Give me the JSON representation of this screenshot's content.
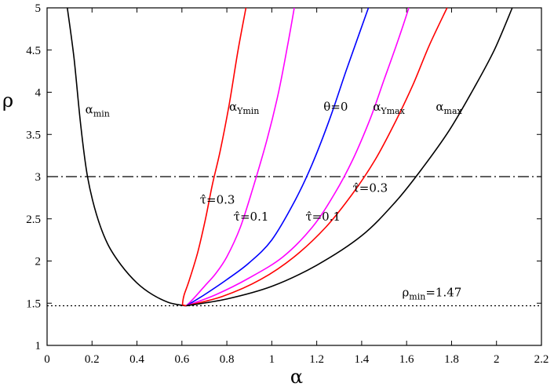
{
  "chart_data": {
    "type": "line",
    "xlabel": "α",
    "ylabel": "ρ",
    "xlim": [
      0,
      2.2
    ],
    "ylim": [
      1,
      5
    ],
    "xticks": [
      "0",
      "0.2",
      "0.4",
      "0.6",
      "0.8",
      "1",
      "1.2",
      "1.4",
      "1.6",
      "1.8",
      "2",
      "2.2"
    ],
    "yticks": [
      "1",
      "1.5",
      "2",
      "2.5",
      "3",
      "3.5",
      "4",
      "4.5",
      "5"
    ],
    "grid": false,
    "series": [
      {
        "key": "alpha_min",
        "color": "#000000",
        "points": [
          [
            0.09,
            5.0
          ],
          [
            0.12,
            4.4
          ],
          [
            0.15,
            3.6
          ],
          [
            0.18,
            3.0
          ],
          [
            0.22,
            2.55
          ],
          [
            0.27,
            2.2
          ],
          [
            0.33,
            1.95
          ],
          [
            0.4,
            1.74
          ],
          [
            0.47,
            1.6
          ],
          [
            0.54,
            1.51
          ],
          [
            0.6,
            1.475
          ],
          [
            0.62,
            1.47
          ]
        ]
      },
      {
        "key": "tau03_left",
        "color": "#ff0000",
        "points": [
          [
            0.62,
            1.47
          ],
          [
            0.605,
            1.48
          ],
          [
            0.603,
            1.5
          ],
          [
            0.61,
            1.6
          ],
          [
            0.63,
            1.75
          ],
          [
            0.67,
            2.1
          ],
          [
            0.705,
            2.5
          ],
          [
            0.735,
            2.9
          ],
          [
            0.77,
            3.3
          ],
          [
            0.81,
            3.85
          ],
          [
            0.85,
            4.5
          ],
          [
            0.885,
            5.0
          ]
        ]
      },
      {
        "key": "tau01_left",
        "color": "#ff00ff",
        "points": [
          [
            0.62,
            1.47
          ],
          [
            0.65,
            1.55
          ],
          [
            0.7,
            1.7
          ],
          [
            0.75,
            1.85
          ],
          [
            0.8,
            2.05
          ],
          [
            0.86,
            2.4
          ],
          [
            0.92,
            2.9
          ],
          [
            0.98,
            3.45
          ],
          [
            1.03,
            4.0
          ],
          [
            1.07,
            4.55
          ],
          [
            1.1,
            5.0
          ]
        ]
      },
      {
        "key": "theta0",
        "color": "#0000ff",
        "points": [
          [
            0.62,
            1.47
          ],
          [
            0.7,
            1.6
          ],
          [
            0.8,
            1.78
          ],
          [
            0.9,
            1.98
          ],
          [
            1.0,
            2.25
          ],
          [
            1.1,
            2.7
          ],
          [
            1.18,
            3.15
          ],
          [
            1.26,
            3.7
          ],
          [
            1.33,
            4.25
          ],
          [
            1.39,
            4.7
          ],
          [
            1.43,
            5.0
          ]
        ]
      },
      {
        "key": "tau01_right",
        "color": "#ff00ff",
        "points": [
          [
            0.62,
            1.47
          ],
          [
            0.75,
            1.6
          ],
          [
            0.9,
            1.8
          ],
          [
            1.05,
            2.05
          ],
          [
            1.18,
            2.4
          ],
          [
            1.28,
            2.8
          ],
          [
            1.36,
            3.2
          ],
          [
            1.44,
            3.7
          ],
          [
            1.5,
            4.15
          ],
          [
            1.56,
            4.6
          ],
          [
            1.61,
            5.0
          ]
        ]
      },
      {
        "key": "tau03_right",
        "color": "#ff0000",
        "points": [
          [
            0.62,
            1.47
          ],
          [
            0.78,
            1.58
          ],
          [
            0.95,
            1.78
          ],
          [
            1.1,
            2.05
          ],
          [
            1.24,
            2.4
          ],
          [
            1.36,
            2.8
          ],
          [
            1.46,
            3.2
          ],
          [
            1.55,
            3.65
          ],
          [
            1.63,
            4.1
          ],
          [
            1.7,
            4.55
          ],
          [
            1.78,
            5.0
          ]
        ]
      },
      {
        "key": "alpha_max",
        "color": "#000000",
        "points": [
          [
            0.62,
            1.47
          ],
          [
            0.8,
            1.55
          ],
          [
            1.0,
            1.7
          ],
          [
            1.2,
            1.95
          ],
          [
            1.4,
            2.3
          ],
          [
            1.55,
            2.7
          ],
          [
            1.67,
            3.1
          ],
          [
            1.79,
            3.55
          ],
          [
            1.9,
            4.05
          ],
          [
            1.99,
            4.5
          ],
          [
            2.07,
            5.0
          ]
        ]
      }
    ],
    "reference_lines": [
      {
        "y": 3.0,
        "style": "dashdot"
      },
      {
        "y": 1.47,
        "style": "dotted"
      }
    ],
    "annotations": [
      {
        "main": "α",
        "sub": "min",
        "x": 0.17,
        "y": 3.75
      },
      {
        "main": "α",
        "sub": "Ymin",
        "x": 0.81,
        "y": 3.78
      },
      {
        "main": "θ=0",
        "sub": "",
        "x": 1.23,
        "y": 3.78
      },
      {
        "main": "α",
        "sub": "Ymax",
        "x": 1.45,
        "y": 3.78
      },
      {
        "main": "α",
        "sub": "max",
        "x": 1.73,
        "y": 3.78
      },
      {
        "main": "τ̂=0.3",
        "sub": "",
        "x": 0.68,
        "y": 2.68
      },
      {
        "main": "τ̂=0.1",
        "sub": "",
        "x": 0.83,
        "y": 2.48
      },
      {
        "main": "τ̂=0.1",
        "sub": "",
        "x": 1.15,
        "y": 2.48
      },
      {
        "main": "τ̂=0.3",
        "sub": "",
        "x": 1.36,
        "y": 2.82
      },
      {
        "main": "ρ",
        "sub": "min",
        "x": 1.58,
        "y": 1.58,
        "suffix": "=1.47"
      }
    ]
  }
}
